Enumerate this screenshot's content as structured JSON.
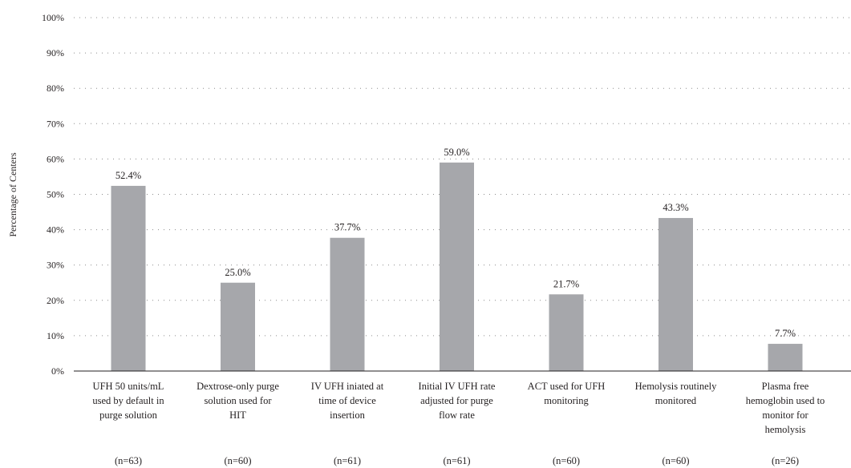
{
  "chart_data": {
    "type": "bar",
    "ylabel": "Percentage of Centers",
    "ylim": [
      0,
      100
    ],
    "yticks": [
      "0%",
      "10%",
      "20%",
      "30%",
      "40%",
      "50%",
      "60%",
      "70%",
      "80%",
      "90%",
      "100%"
    ],
    "grid": true,
    "categories": [
      [
        "UFH 50 units/mL",
        "used by default in",
        "purge solution"
      ],
      [
        "Dextrose-only purge",
        "solution used for",
        "HIT"
      ],
      [
        "IV UFH iniated at",
        "time of device",
        "insertion"
      ],
      [
        "Initial IV UFH rate",
        "adjusted for purge",
        "flow rate"
      ],
      [
        "ACT used for UFH",
        "monitoring"
      ],
      [
        "Hemolysis routinely",
        "monitored"
      ],
      [
        "Plasma free",
        "hemoglobin used to",
        "monitor for",
        "hemolysis"
      ]
    ],
    "sample_sizes": [
      "(n=63)",
      "(n=60)",
      "(n=61)",
      "(n=61)",
      "(n=60)",
      "(n=60)",
      "(n=26)"
    ],
    "values": [
      52.4,
      25.0,
      37.7,
      59.0,
      21.7,
      43.3,
      7.7
    ],
    "value_labels": [
      "52.4%",
      "25.0%",
      "37.7%",
      "59.0%",
      "21.7%",
      "43.3%",
      "7.7%"
    ],
    "colors": {
      "bar": "#a6a7ab",
      "grid": "#8c8c8c",
      "axis": "#231f20",
      "text": "#231f20"
    }
  }
}
